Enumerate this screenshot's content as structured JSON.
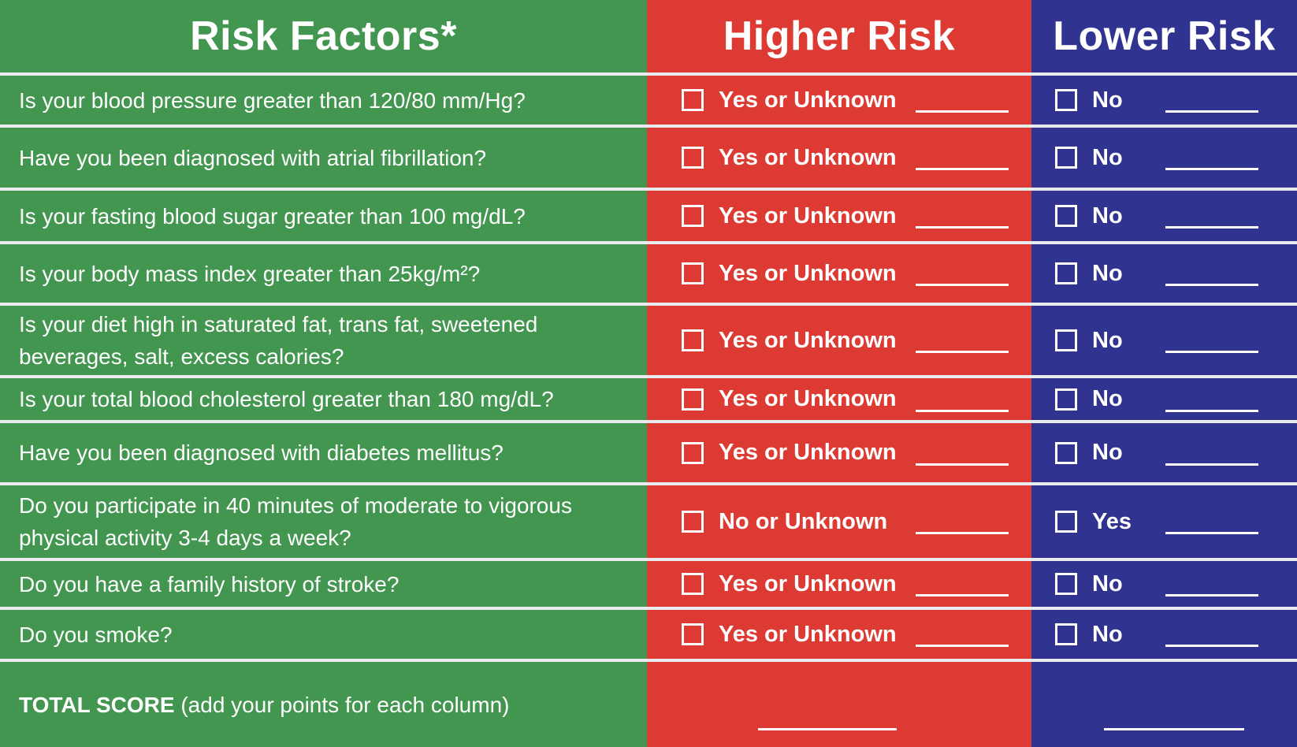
{
  "header": {
    "risk_factors": "Risk Factors*",
    "higher_risk": "Higher Risk",
    "lower_risk": "Lower Risk"
  },
  "rows": [
    {
      "question": "Is your blood pressure greater than 120/80 mm/Hg?",
      "higher": "Yes or Unknown",
      "lower": "No"
    },
    {
      "question": "Have you been diagnosed with atrial fibrillation?",
      "higher": "Yes or Unknown",
      "lower": "No"
    },
    {
      "question": "Is your fasting blood sugar greater than 100 mg/dL?",
      "higher": "Yes or Unknown",
      "lower": "No"
    },
    {
      "question": "Is your body mass index greater  than 25kg/m²?",
      "higher": "Yes or Unknown",
      "lower": "No"
    },
    {
      "question": "Is your diet high in saturated fat, trans fat, sweetened beverages, salt, excess calories?",
      "higher": "Yes or Unknown",
      "lower": "No"
    },
    {
      "question": "Is your total blood cholesterol greater than 180 mg/dL?",
      "higher": "Yes or Unknown",
      "lower": "No"
    },
    {
      "question": "Have you been diagnosed with diabetes mellitus?",
      "higher": "Yes or Unknown",
      "lower": "No"
    },
    {
      "question": "Do you participate in 40 minutes of moderate to vigorous physical activity 3-4 days a week?",
      "higher": "No or Unknown",
      "lower": "Yes"
    },
    {
      "question": "Do you have a family history of stroke?",
      "higher": "Yes or Unknown",
      "lower": "No"
    },
    {
      "question": "Do you smoke?",
      "higher": "Yes or Unknown",
      "lower": "No"
    }
  ],
  "total": {
    "label_bold": "TOTAL SCORE",
    "label_rest": " (add your points for each column)"
  },
  "colors": {
    "green": "#439650",
    "red": "#dc3a32",
    "blue": "#313391",
    "separator": "#e9ecef"
  }
}
